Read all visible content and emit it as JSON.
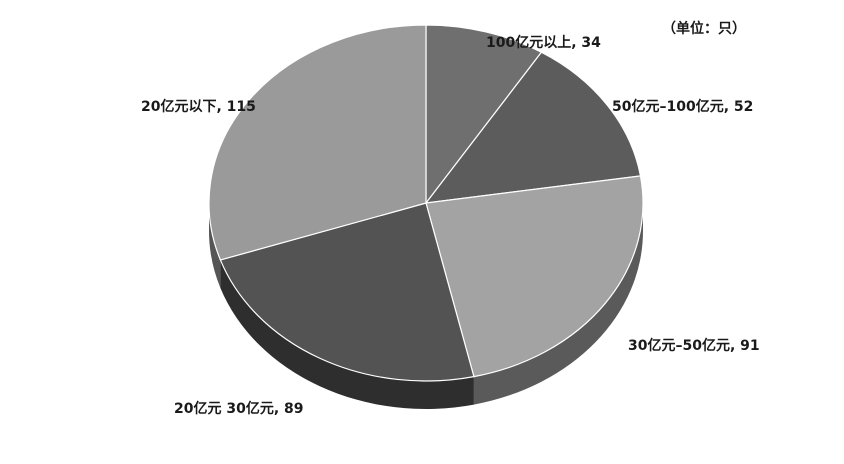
{
  "chart_data": {
    "type": "pie",
    "unit_label": "（单位：只）",
    "slices": [
      {
        "label": "100亿元以上",
        "value": 34,
        "color": "#6f6f6f",
        "display": "100亿元以上, 34"
      },
      {
        "label": "50亿元–100亿元",
        "value": 52,
        "color": "#5c5c5c",
        "display": "50亿元–100亿元, 52"
      },
      {
        "label": "30亿元–50亿元",
        "value": 91,
        "color": "#a3a3a3",
        "display": "30亿元–50亿元, 91"
      },
      {
        "label": "20亿元–30亿元",
        "value": 89,
        "color": "#535353",
        "display": "20亿元  30亿元, 89"
      },
      {
        "label": "20亿元以下",
        "value": 115,
        "color": "#9a9a9a",
        "display": "20亿元以下, 115"
      }
    ],
    "style": "3d-pie",
    "legend": "none"
  }
}
